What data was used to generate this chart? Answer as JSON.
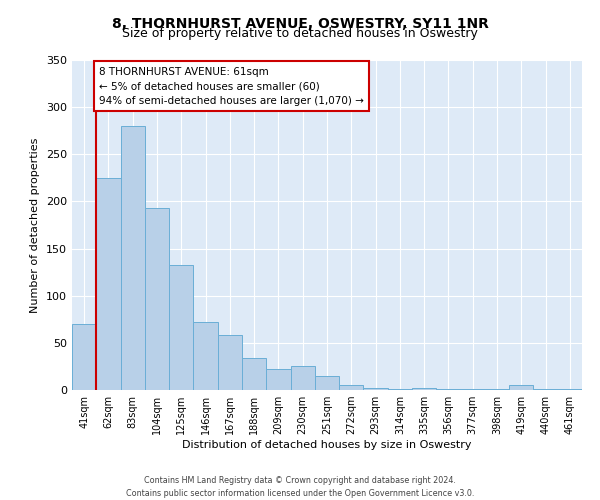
{
  "title": "8, THORNHURST AVENUE, OSWESTRY, SY11 1NR",
  "subtitle": "Size of property relative to detached houses in Oswestry",
  "xlabel": "Distribution of detached houses by size in Oswestry",
  "ylabel": "Number of detached properties",
  "bar_labels": [
    "41sqm",
    "62sqm",
    "83sqm",
    "104sqm",
    "125sqm",
    "146sqm",
    "167sqm",
    "188sqm",
    "209sqm",
    "230sqm",
    "251sqm",
    "272sqm",
    "293sqm",
    "314sqm",
    "335sqm",
    "356sqm",
    "377sqm",
    "398sqm",
    "419sqm",
    "440sqm",
    "461sqm"
  ],
  "bar_values": [
    70,
    225,
    280,
    193,
    133,
    72,
    58,
    34,
    22,
    25,
    15,
    5,
    2,
    1,
    2,
    1,
    1,
    1,
    5,
    1,
    1
  ],
  "bar_color": "#b8d0e8",
  "bar_edge_color": "#6aaed6",
  "ylim": [
    0,
    350
  ],
  "yticks": [
    0,
    50,
    100,
    150,
    200,
    250,
    300,
    350
  ],
  "marker_line_color": "#cc0000",
  "annotation_text": "8 THORNHURST AVENUE: 61sqm\n← 5% of detached houses are smaller (60)\n94% of semi-detached houses are larger (1,070) →",
  "annotation_box_color": "#ffffff",
  "annotation_box_edge": "#cc0000",
  "footer1": "Contains HM Land Registry data © Crown copyright and database right 2024.",
  "footer2": "Contains public sector information licensed under the Open Government Licence v3.0.",
  "background_color": "#deeaf7",
  "plot_background": "#ffffff",
  "grid_color": "#ffffff",
  "title_fontsize": 10,
  "subtitle_fontsize": 9,
  "axis_label_fontsize": 8,
  "tick_fontsize": 7,
  "annotation_fontsize": 7.5,
  "footer_fontsize": 5.8
}
